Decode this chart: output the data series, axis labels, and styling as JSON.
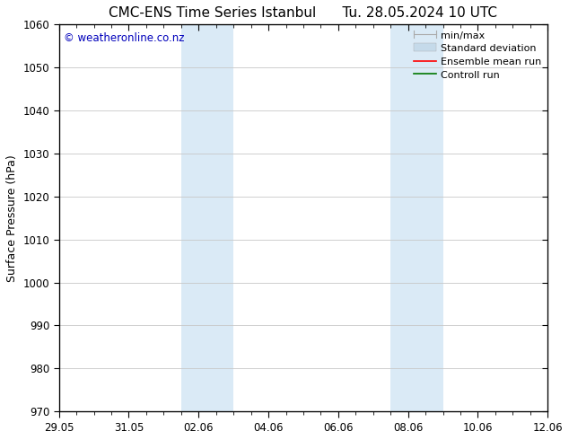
{
  "title_left": "CMC-ENS Time Series Istanbul",
  "title_right": "Tu. 28.05.2024 10 UTC",
  "ylabel": "Surface Pressure (hPa)",
  "ylim": [
    970,
    1060
  ],
  "yticks": [
    970,
    980,
    990,
    1000,
    1010,
    1020,
    1030,
    1040,
    1050,
    1060
  ],
  "xlim": [
    0,
    14
  ],
  "xtick_labels": [
    "29.05",
    "31.05",
    "02.06",
    "04.06",
    "06.06",
    "08.06",
    "10.06",
    "12.06"
  ],
  "xtick_positions": [
    0,
    2,
    4,
    6,
    8,
    10,
    12,
    14
  ],
  "shaded_regions": [
    {
      "x_start": 3.5,
      "x_end": 5.0,
      "color": "#daeaf6"
    },
    {
      "x_start": 9.5,
      "x_end": 11.0,
      "color": "#daeaf6"
    }
  ],
  "watermark": "© weatheronline.co.nz",
  "watermark_color": "#0000bb",
  "bg_color": "#ffffff",
  "grid_color": "#c8c8c8",
  "legend_labels": [
    "min/max",
    "Standard deviation",
    "Ensemble mean run",
    "Controll run"
  ],
  "legend_colors": [
    "#aaaaaa",
    "#c5daea",
    "#ff0000",
    "#007700"
  ],
  "title_fontsize": 11,
  "label_fontsize": 9,
  "tick_fontsize": 8.5,
  "legend_fontsize": 8
}
